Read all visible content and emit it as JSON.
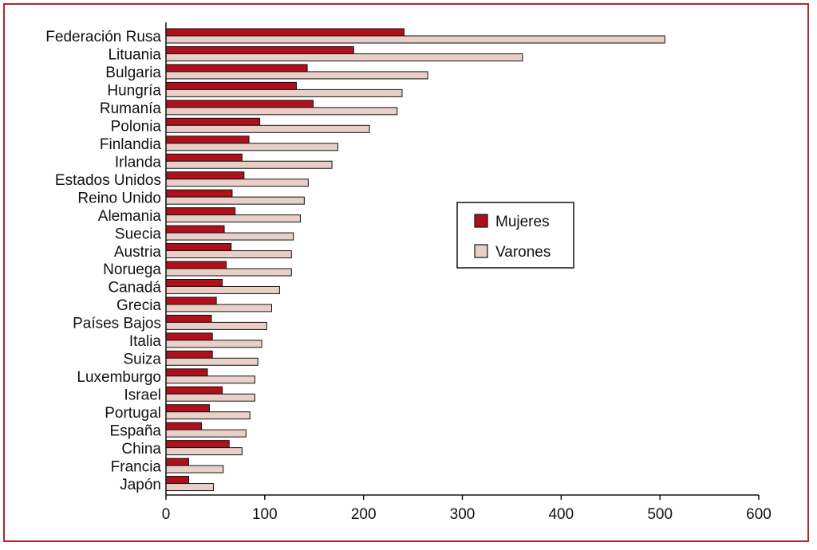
{
  "colors": {
    "frame": "#b5262b",
    "mujeres": "#b0101c",
    "varones": "#e8cfc8",
    "stroke": "#111111"
  },
  "chart_data": {
    "type": "bar",
    "orientation": "horizontal",
    "title": "",
    "xlabel": "",
    "ylabel": "",
    "xlim": [
      0,
      600
    ],
    "xticks": [
      0,
      100,
      200,
      300,
      400,
      500,
      600
    ],
    "grid": false,
    "legend_position": "center-right",
    "categories": [
      "Federación Rusa",
      "Lituania",
      "Bulgaria",
      "Hungría",
      "Rumanía",
      "Polonia",
      "Finlandia",
      "Irlanda",
      "Estados Unidos",
      "Reino Unido",
      "Alemania",
      "Suecia",
      "Austria",
      "Noruega",
      "Canadá",
      "Grecia",
      "Países Bajos",
      "Italia",
      "Suiza",
      "Luxemburgo",
      "Israel",
      "Portugal",
      "España",
      "China",
      "Francia",
      "Japón"
    ],
    "series": [
      {
        "name": "Mujeres",
        "values": [
          241,
          190,
          143,
          132,
          149,
          95,
          84,
          77,
          79,
          67,
          70,
          59,
          66,
          61,
          57,
          51,
          46,
          47,
          47,
          42,
          57,
          44,
          36,
          64,
          23,
          23
        ]
      },
      {
        "name": "Varones",
        "values": [
          505,
          361,
          265,
          239,
          234,
          206,
          174,
          168,
          144,
          140,
          136,
          129,
          127,
          127,
          115,
          107,
          102,
          97,
          93,
          90,
          90,
          85,
          81,
          77,
          58,
          48
        ]
      }
    ]
  }
}
